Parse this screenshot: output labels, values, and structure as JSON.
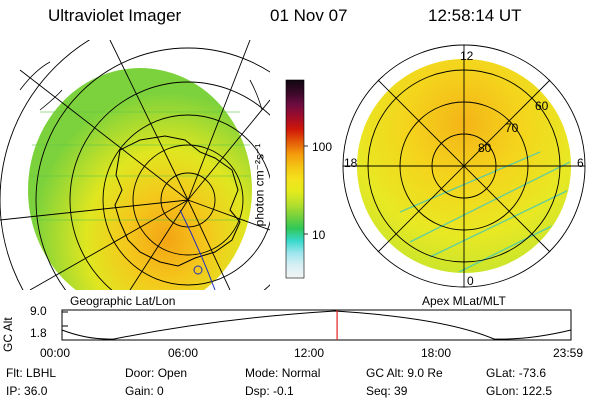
{
  "header": {
    "instrument": "Ultraviolet Imager",
    "date": "01 Nov 07",
    "time": "12:58:14 UT"
  },
  "colorbar": {
    "label": "photon cm⁻²s⁻¹",
    "tick_high": "100",
    "tick_low": "10",
    "colors": [
      "#f4f4f4",
      "#d8f0f4",
      "#9fe6ee",
      "#38d8cc",
      "#30c858",
      "#78d23c",
      "#b8e02c",
      "#e4ea1c",
      "#f4e21c",
      "#f4c414",
      "#f49c0c",
      "#e45a08",
      "#d01808",
      "#a00c28",
      "#6e0c40",
      "#380828",
      "#100810"
    ]
  },
  "left_panel": {
    "caption": "Geographic Lat/Lon"
  },
  "right_panel": {
    "caption": "Apex MLat/MLT",
    "mlt_labels": {
      "top": "12",
      "left": "18",
      "right": "6",
      "bottom": "0"
    },
    "lat_labels": [
      "80",
      "70",
      "60"
    ]
  },
  "timeline": {
    "axis_label": "GC Alt",
    "y_ticks": [
      "9.0",
      "1.8"
    ],
    "x_ticks": [
      "00:00",
      "06:00",
      "12:00",
      "18:00",
      "23:59"
    ],
    "current_hour": 12.97
  },
  "status": {
    "row1": [
      {
        "label": "Flt:",
        "value": "LBHL"
      },
      {
        "label": "Door:",
        "value": "Open"
      },
      {
        "label": "Mode:",
        "value": "Normal"
      },
      {
        "label": "GC Alt:",
        "value": "9.0 Re"
      },
      {
        "label": "GLat:",
        "value": "-73.6"
      }
    ],
    "row2": [
      {
        "label": "IP:",
        "value": "36.0"
      },
      {
        "label": "Gain:",
        "value": "0"
      },
      {
        "label": "Dsp:",
        "value": "-0.1"
      },
      {
        "label": "Seq:",
        "value": "39"
      },
      {
        "label": "GLon:",
        "value": "122.5"
      }
    ]
  }
}
